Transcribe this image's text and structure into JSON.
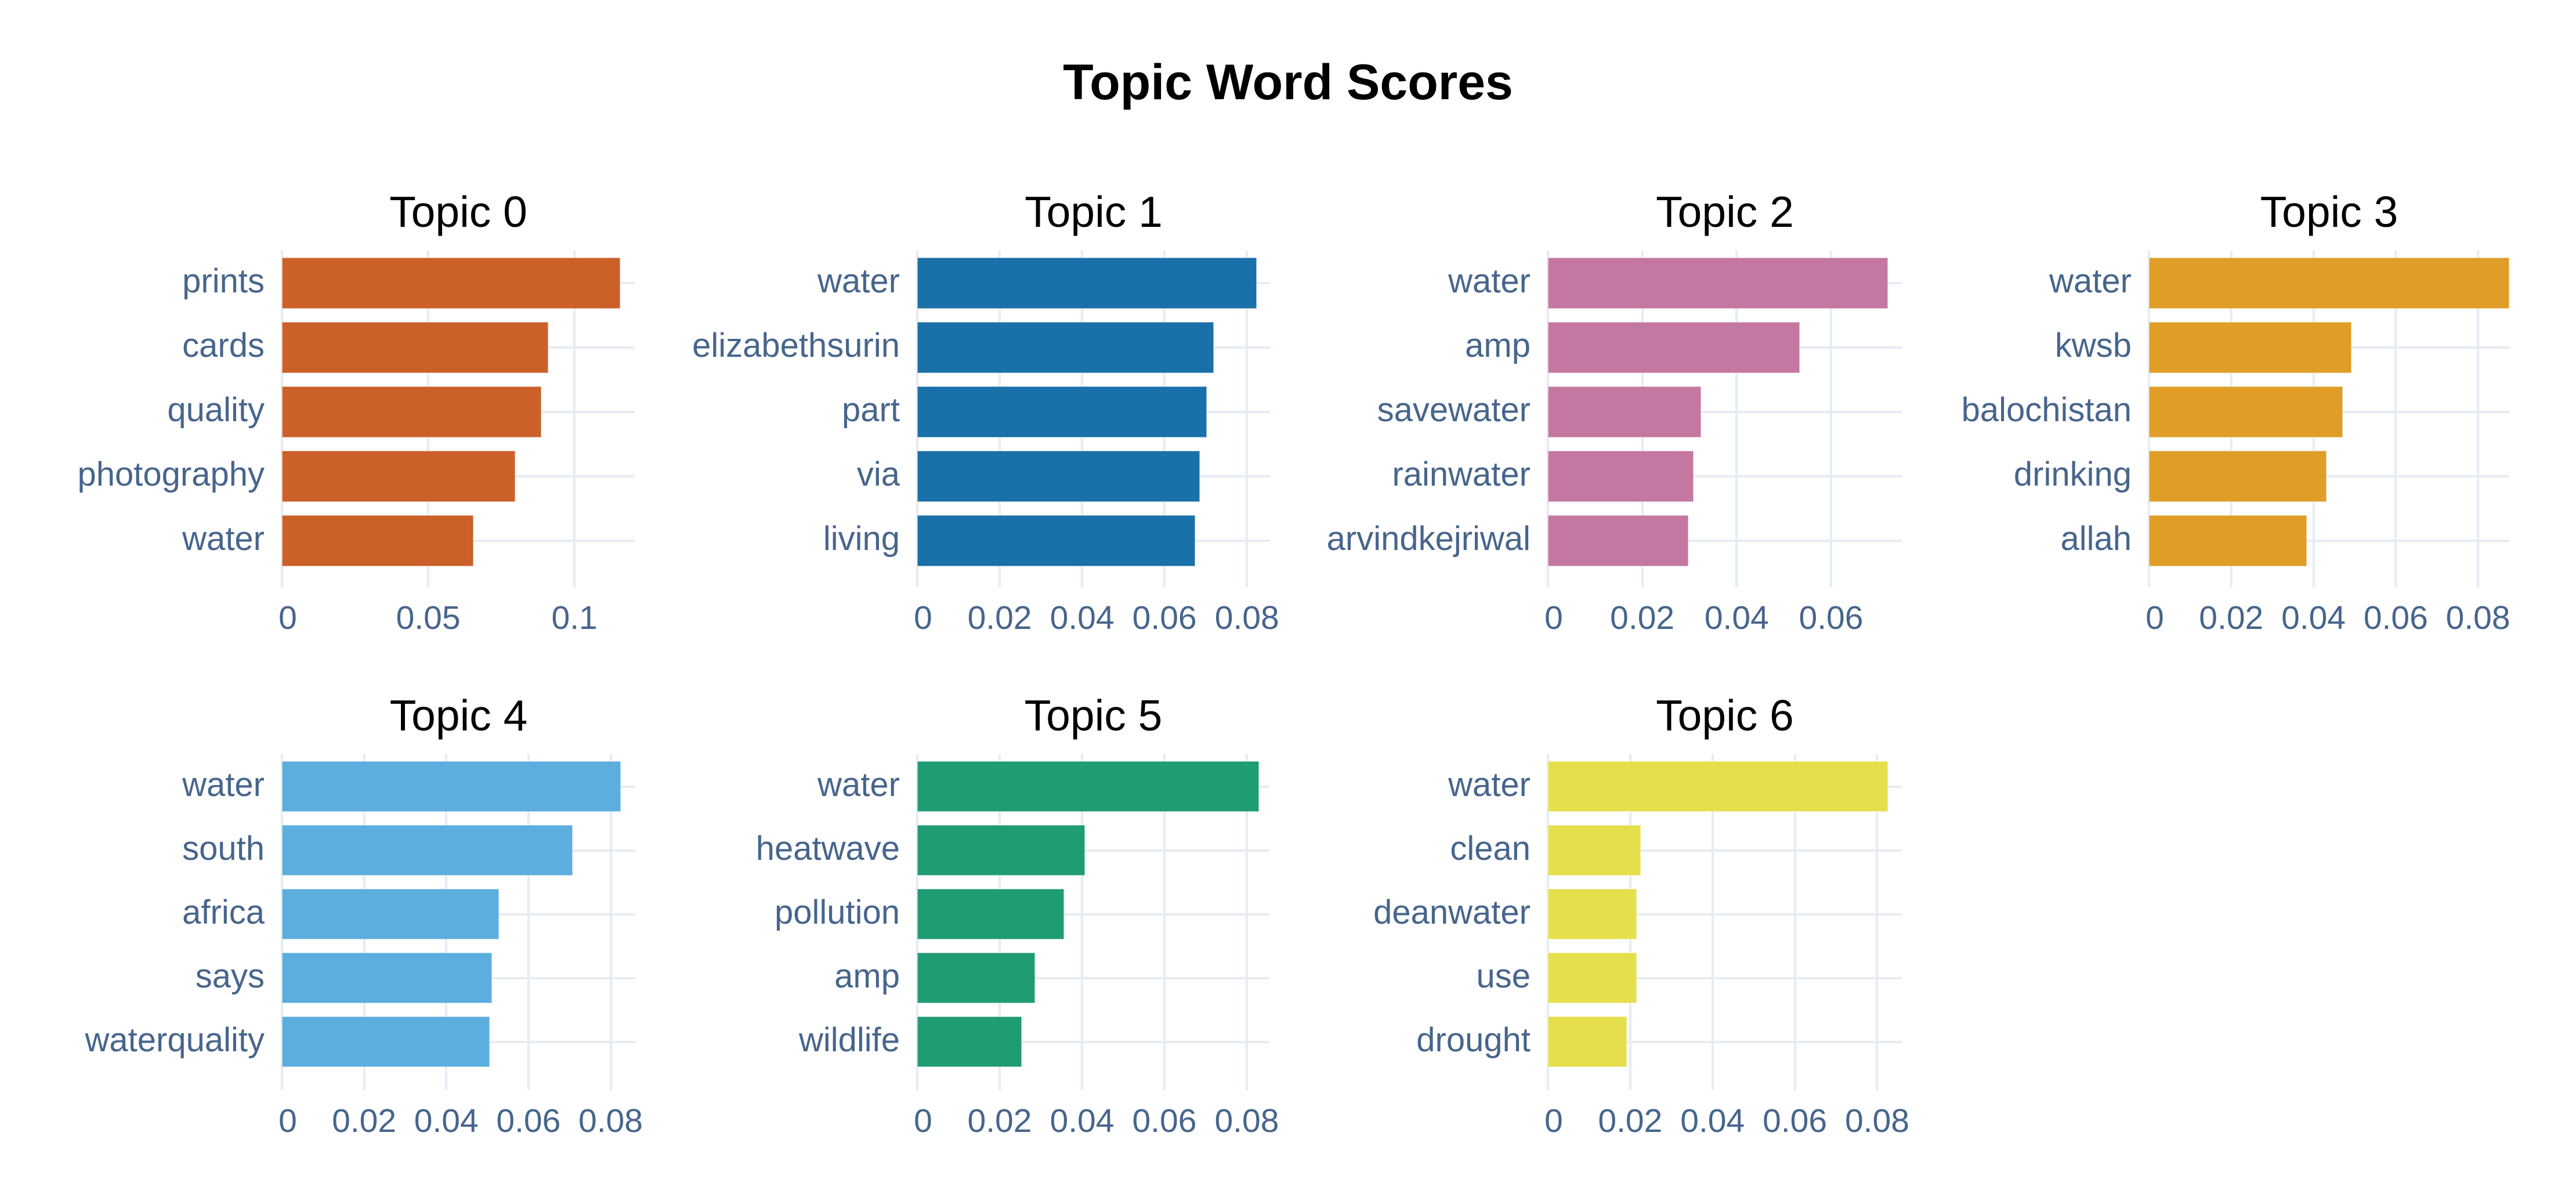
{
  "title": "Topic Word Scores",
  "chart_data": {
    "type": "bar",
    "orientation": "horizontal",
    "title": "Topic Word Scores",
    "xlabel": "",
    "ylabel": "",
    "grid": true,
    "legend": false,
    "panels": [
      {
        "title": "Topic 0",
        "color": "#CC6029",
        "categories": [
          "prints",
          "cards",
          "quality",
          "photography",
          "water"
        ],
        "values": [
          0.1157,
          0.0911,
          0.0886,
          0.0798,
          0.0655
        ],
        "xlim": [
          0,
          0.1206
        ],
        "xticks": [
          0,
          0.05,
          0.1
        ],
        "xtick_labels": [
          "0",
          "0.05",
          "0.1"
        ]
      },
      {
        "title": "Topic 1",
        "color": "#1A70A8",
        "categories": [
          "water",
          "elizabethsurin",
          "part",
          "via",
          "living"
        ],
        "values": [
          0.0824,
          0.0719,
          0.0703,
          0.0686,
          0.0675
        ],
        "xlim": [
          0,
          0.0856
        ],
        "xticks": [
          0,
          0.02,
          0.04,
          0.06,
          0.08
        ],
        "xtick_labels": [
          "0",
          "0.02",
          "0.04",
          "0.06",
          "0.08"
        ]
      },
      {
        "title": "Topic 2",
        "color": "#C477A1",
        "categories": [
          "water",
          "amp",
          "savewater",
          "rainwater",
          "arvindkejriwal"
        ],
        "values": [
          0.072,
          0.0533,
          0.0325,
          0.0309,
          0.0297
        ],
        "xlim": [
          0,
          0.075
        ],
        "xticks": [
          0,
          0.02,
          0.04,
          0.06
        ],
        "xtick_labels": [
          "0",
          "0.02",
          "0.04",
          "0.06"
        ]
      },
      {
        "title": "Topic 3",
        "color": "#E09E28",
        "categories": [
          "water",
          "kwsb",
          "balochistan",
          "drinking",
          "allah"
        ],
        "values": [
          0.0876,
          0.0492,
          0.0471,
          0.0431,
          0.0383
        ],
        "xlim": [
          0,
          0.0876
        ],
        "xticks": [
          0,
          0.02,
          0.04,
          0.06,
          0.08
        ],
        "xtick_labels": [
          "0",
          "0.02",
          "0.04",
          "0.06",
          "0.08"
        ]
      },
      {
        "title": "Topic 4",
        "color": "#5BAEDE",
        "categories": [
          "water",
          "south",
          "africa",
          "says",
          "waterquality"
        ],
        "values": [
          0.0824,
          0.0708,
          0.0528,
          0.0511,
          0.0505
        ],
        "xlim": [
          0,
          0.086
        ],
        "xticks": [
          0,
          0.02,
          0.04,
          0.06,
          0.08
        ],
        "xtick_labels": [
          "0",
          "0.02",
          "0.04",
          "0.06",
          "0.08"
        ]
      },
      {
        "title": "Topic 5",
        "color": "#1F9C71",
        "categories": [
          "water",
          "heatwave",
          "pollution",
          "amp",
          "wildlife"
        ],
        "values": [
          0.083,
          0.0407,
          0.0357,
          0.0286,
          0.0254
        ],
        "xlim": [
          0,
          0.0855
        ],
        "xticks": [
          0,
          0.02,
          0.04,
          0.06,
          0.08
        ],
        "xtick_labels": [
          "0",
          "0.02",
          "0.04",
          "0.06",
          "0.08"
        ]
      },
      {
        "title": "Topic 6",
        "color": "#E5DF4C",
        "categories": [
          "water",
          "clean",
          "deanwater",
          "use",
          "drought"
        ],
        "values": [
          0.0826,
          0.0225,
          0.0216,
          0.0216,
          0.0192
        ],
        "xlim": [
          0,
          0.086
        ],
        "xticks": [
          0,
          0.02,
          0.04,
          0.06,
          0.08
        ],
        "xtick_labels": [
          "0",
          "0.02",
          "0.04",
          "0.06",
          "0.08"
        ]
      }
    ]
  },
  "colors": {
    "title_text": "#000000",
    "axis_text": "#47658C",
    "gridline": "#E6ECF2",
    "background": "#FFFFFF"
  }
}
